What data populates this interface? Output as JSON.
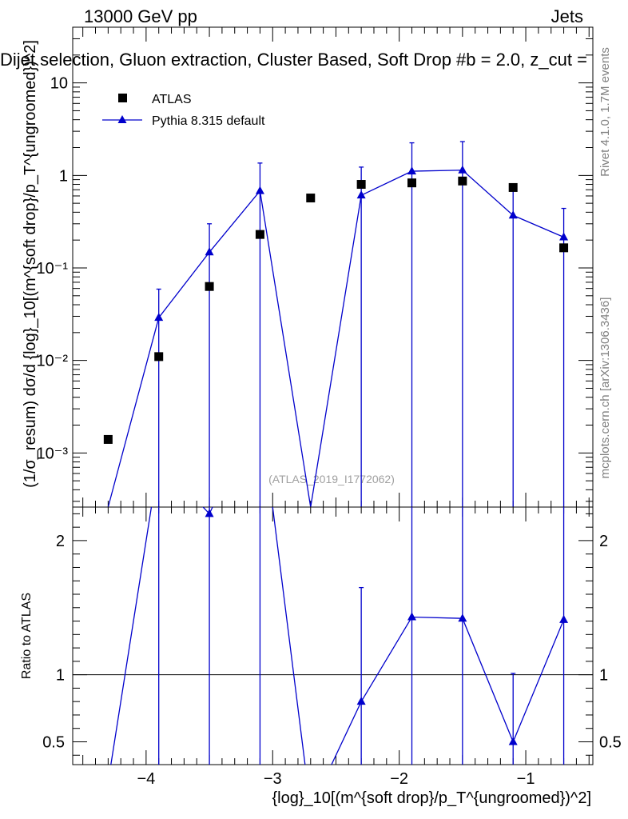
{
  "header": {
    "left": "13000 GeV pp",
    "right": "Jets",
    "title": "Dijet selection, Gluon extraction, Cluster Based, Soft Drop #b = 2.0, z_cut = ",
    "watermark": "(ATLAS_2019_I1772062)",
    "side_top": "Rivet 4.1.0,  1.7M events",
    "side_bottom": "mcplots.cern.ch [arXiv:1306.3436]"
  },
  "legend": {
    "position": "top-left",
    "entries": [
      {
        "name": "ATLAS",
        "marker": "square",
        "color": "#000000"
      },
      {
        "name": "Pythia 8.315 default",
        "marker": "triangle",
        "color": "#0000cc"
      }
    ]
  },
  "chart_data": [
    {
      "type": "scatter",
      "panel": "main",
      "yscale": "log",
      "xlim": [
        -4.58,
        -0.47
      ],
      "ylim": [
        0.00026,
        40
      ],
      "ylabel": "(1/σ_resum) dσ/d {log}_10[(m^{soft drop}/p_T^{ungroomed})^2]",
      "x_ticks": [
        -4,
        -3,
        -2,
        -1
      ],
      "y_ticks": [
        {
          "value": 10,
          "label": "10"
        },
        {
          "value": 1,
          "label": "1"
        },
        {
          "value": 0.1,
          "label": "10⁻¹"
        },
        {
          "value": 0.01,
          "label": "10⁻²"
        },
        {
          "value": 0.001,
          "label": "10⁻³"
        }
      ],
      "series": [
        {
          "name": "ATLAS",
          "x": [
            -4.3,
            -3.9,
            -3.5,
            -3.1,
            -2.7,
            -2.3,
            -1.9,
            -1.5,
            -1.1,
            -0.7
          ],
          "values": [
            0.0014,
            0.011,
            0.063,
            0.23,
            0.57,
            0.8,
            0.83,
            0.87,
            0.74,
            0.165
          ]
        },
        {
          "name": "Pythia 8.315 default",
          "x": [
            -4.3,
            -3.9,
            -3.5,
            -3.1,
            -2.7,
            -2.3,
            -1.9,
            -1.5,
            -1.1,
            -0.7
          ],
          "values": [
            0.00026,
            0.029,
            0.148,
            0.68,
            0.00026,
            0.61,
            1.11,
            1.14,
            0.37,
            0.215
          ],
          "err_up": [
            null,
            0.059,
            0.3,
            1.36,
            null,
            1.23,
            2.25,
            2.32,
            0.75,
            0.44
          ],
          "err_down": [
            null,
            0.00026,
            0.00026,
            0.00026,
            null,
            0.00026,
            0.00026,
            0.00026,
            0.00026,
            0.00026
          ]
        }
      ]
    },
    {
      "type": "line",
      "panel": "ratio",
      "xlim": [
        -4.58,
        -0.47
      ],
      "ylim": [
        0.33,
        2.25
      ],
      "xlabel": "{log}_10[(m^{soft drop}/p_T^{ungroomed})^2]",
      "ylabel": "Ratio to ATLAS",
      "x_ticks": [
        {
          "value": -4,
          "label": "−4"
        },
        {
          "value": -3,
          "label": "−3"
        },
        {
          "value": -2,
          "label": "−2"
        },
        {
          "value": -1,
          "label": "−1"
        }
      ],
      "y_ticks": [
        {
          "value": 2,
          "label": "2"
        },
        {
          "value": 1,
          "label": "1"
        },
        {
          "value": 0.5,
          "label": "0.5"
        }
      ],
      "reference_line": 1,
      "series": [
        {
          "name": "Pythia 8.315 default",
          "x": [
            -4.3,
            -3.9,
            -3.5,
            -3.1,
            -2.7,
            -2.3,
            -1.9,
            -1.5,
            -1.1,
            -0.7
          ],
          "values": [
            0.2,
            2.6,
            2.2,
            3.0,
            0.0,
            0.8,
            1.43,
            1.42,
            0.5,
            1.41
          ],
          "err_up": [
            null,
            3.0,
            3.0,
            3.0,
            null,
            1.65,
            3.0,
            3.0,
            1.01,
            3.0
          ],
          "err_down": [
            null,
            0.0,
            0.0,
            0.0,
            null,
            0.0,
            0.0,
            0.0,
            0.0,
            0.0
          ]
        }
      ]
    }
  ]
}
